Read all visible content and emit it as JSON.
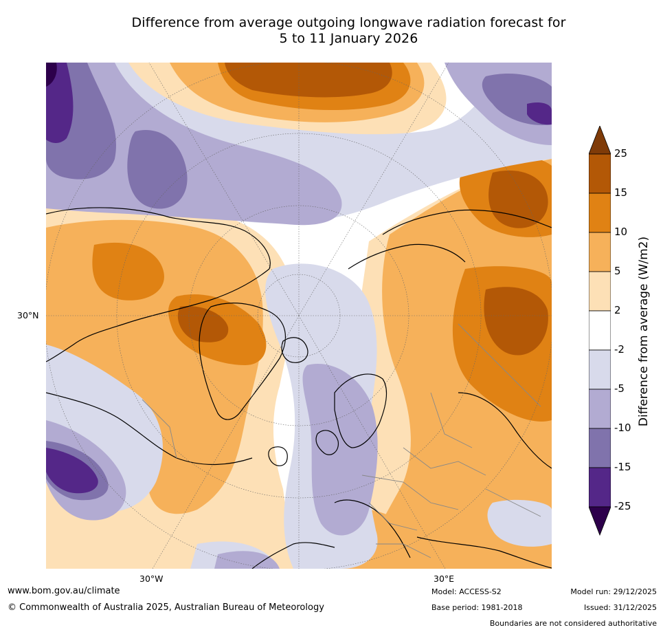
{
  "title": {
    "line1": "Difference from average outgoing longwave radiation forecast for",
    "line2": "5 to 11 January 2026"
  },
  "map": {
    "lat_label": "30°N",
    "lon_labels": {
      "west": "30°W",
      "east": "30°E"
    },
    "region": "Northern Hemisphere (polar stereographic, Atlantic–Europe sector)"
  },
  "colorbar": {
    "label": "Difference from average (W/m2)",
    "ticks": [
      "25",
      "15",
      "10",
      "5",
      "2",
      "-2",
      "-5",
      "-10",
      "-15",
      "-25"
    ],
    "levels": [
      {
        "range": "> 25",
        "color": "#7f3b08"
      },
      {
        "range": "15 to 25",
        "color": "#b35806"
      },
      {
        "range": "10 to 15",
        "color": "#e08214"
      },
      {
        "range": "5 to 10",
        "color": "#f6b15a"
      },
      {
        "range": "2 to 5",
        "color": "#fde0b6"
      },
      {
        "range": "-2 to 2",
        "color": "#ffffff"
      },
      {
        "range": "-5 to -2",
        "color": "#d8daeb"
      },
      {
        "range": "-10 to -5",
        "color": "#b2abd2"
      },
      {
        "range": "-15 to -10",
        "color": "#8073ac"
      },
      {
        "range": "-25 to -15",
        "color": "#542788"
      },
      {
        "range": "< -25",
        "color": "#2d004b"
      }
    ]
  },
  "footer": {
    "website": "www.bom.gov.au/climate",
    "copyright": "© Commonwealth of Australia 2025, Australian Bureau of Meteorology",
    "model": "Model: ACCESS-S2",
    "base_period": "Base period: 1981-2018",
    "model_run": "Model run: 29/12/2025",
    "issued": "Issued: 31/12/2025",
    "disclaimer": "Boundaries are not considered authoritative"
  }
}
